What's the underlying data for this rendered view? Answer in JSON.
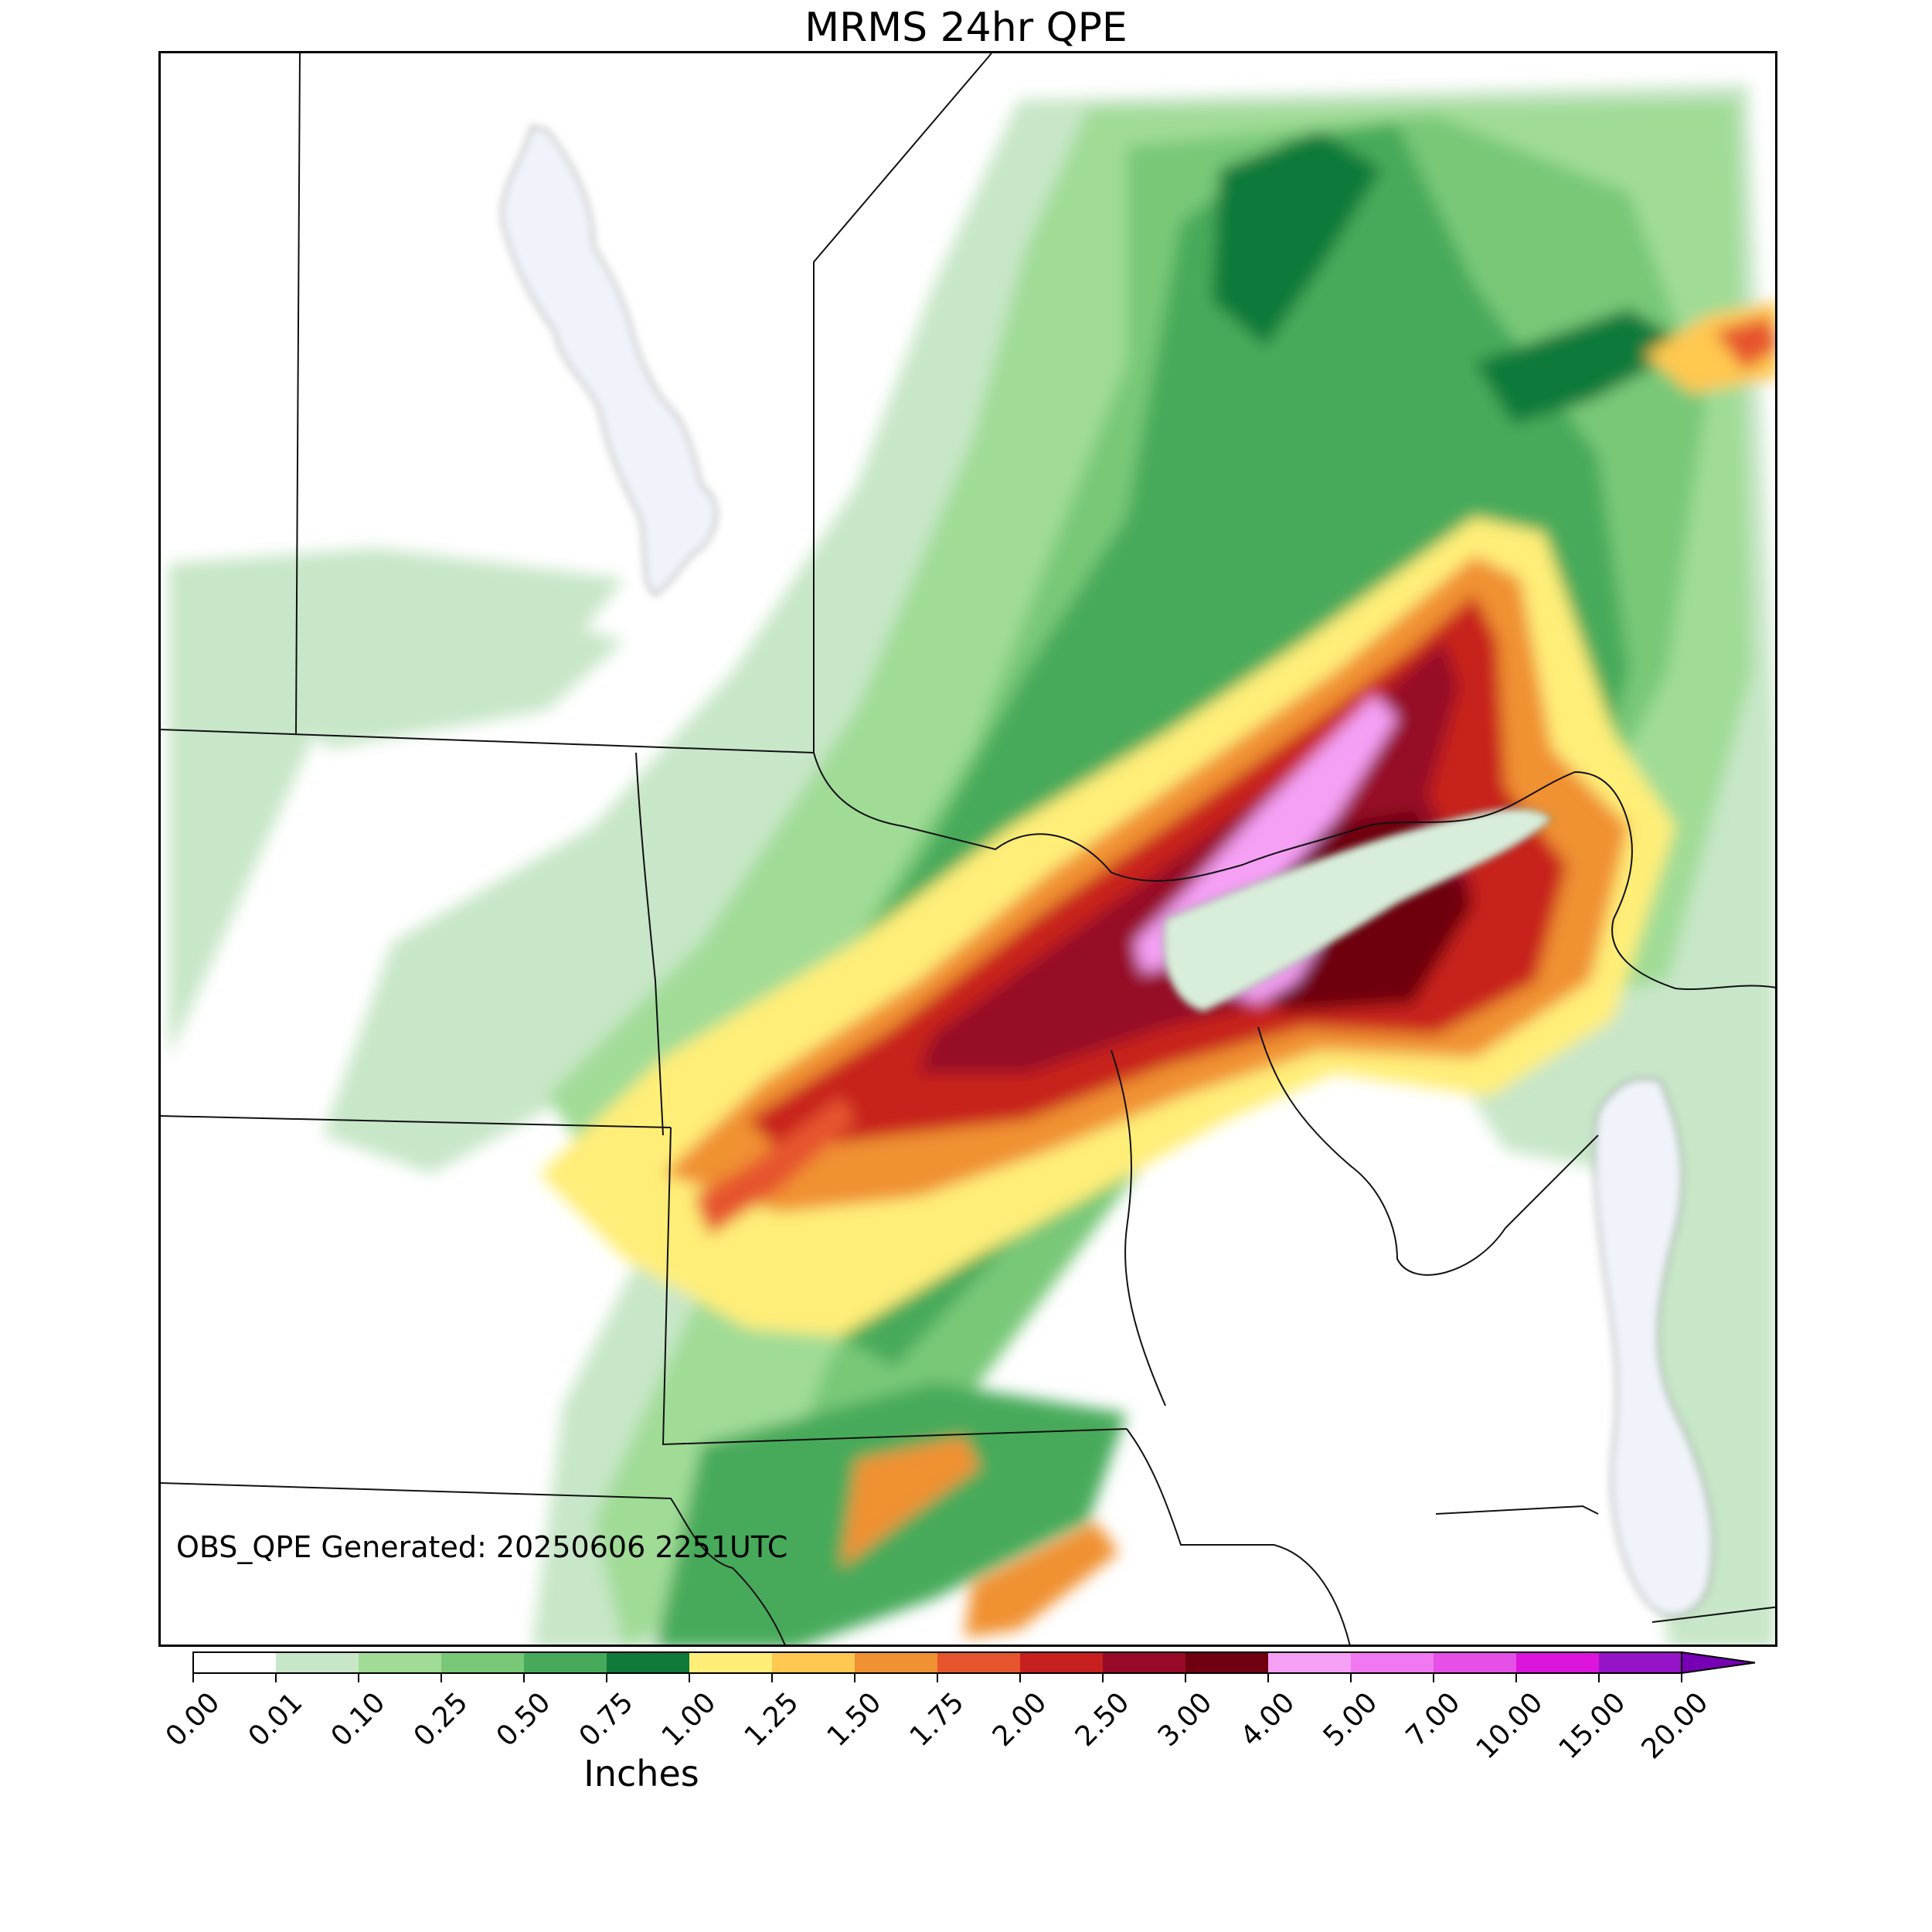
{
  "title": "MRMS 24hr QPE",
  "annotation": "OBS_QPE Generated: 20250606 2251UTC",
  "colorbar": {
    "label": "Inches",
    "ticks": [
      "0.00",
      "0.01",
      "0.10",
      "0.25",
      "0.50",
      "0.75",
      "1.00",
      "1.25",
      "1.50",
      "1.75",
      "2.00",
      "2.50",
      "3.00",
      "4.00",
      "5.00",
      "7.00",
      "10.00",
      "15.00",
      "20.00"
    ],
    "colors": [
      "#ffffff",
      "#c8e6c8",
      "#a0dc96",
      "#78c878",
      "#46aa5a",
      "#0f7a3a",
      "#ffee78",
      "#ffc850",
      "#f09132",
      "#e6552d",
      "#c8201e",
      "#960a28",
      "#6e0010",
      "#f5a0f5",
      "#f078f0",
      "#e650e6",
      "#dc14dc",
      "#9614c8"
    ],
    "extend_color": "#7800b4"
  },
  "chart_data": {
    "type": "heatmap",
    "title": "MRMS 24hr QPE",
    "variable": "24-hour quantitative precipitation estimate",
    "units": "Inches",
    "levels": [
      0.0,
      0.01,
      0.1,
      0.25,
      0.5,
      0.75,
      1.0,
      1.25,
      1.5,
      1.75,
      2.0,
      2.5,
      3.0,
      4.0,
      5.0,
      7.0,
      10.0,
      15.0,
      20.0
    ],
    "max_region_value_approx": 5.0
  }
}
